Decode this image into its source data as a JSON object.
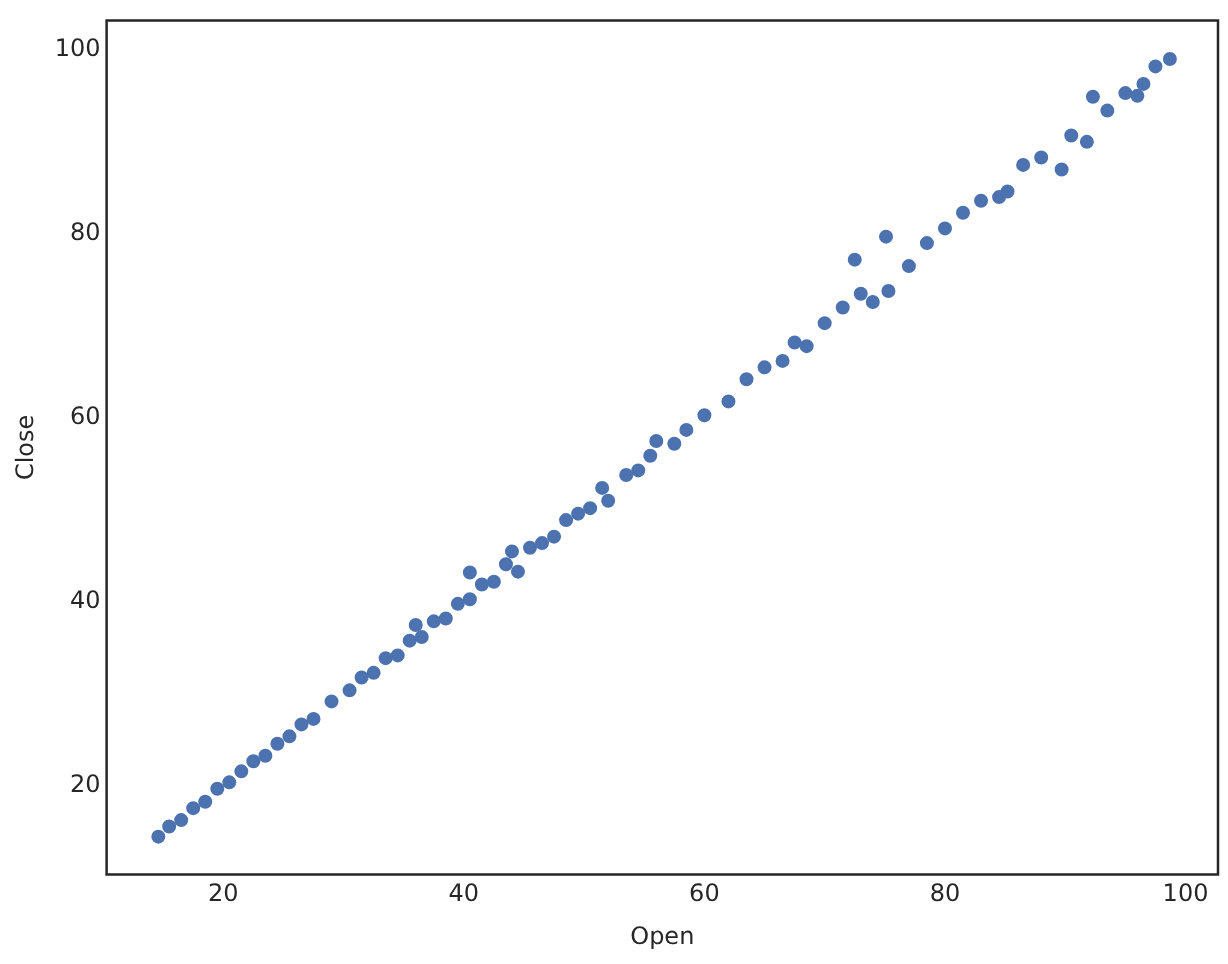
{
  "chart_data": {
    "type": "scatter",
    "xlabel": "Open",
    "ylabel": "Close",
    "xlim": [
      10.3,
      102.7
    ],
    "ylim": [
      10.4,
      103.2
    ],
    "xticks": [
      20,
      40,
      60,
      80,
      100
    ],
    "yticks": [
      20,
      40,
      60,
      80,
      100
    ],
    "grid": false,
    "legend": false,
    "marker": "circle",
    "series": [
      {
        "color": "#4c72b0",
        "x": [
          14.6,
          15.5,
          16.5,
          17.5,
          18.5,
          19.5,
          20.5,
          21.5,
          22.5,
          23.5,
          24.5,
          25.5,
          26.5,
          27.5,
          29,
          30.5,
          31.5,
          32.5,
          33.5,
          34.5,
          35.5,
          36,
          36.5,
          37.5,
          38.5,
          39.5,
          40.5,
          40.5,
          41.5,
          42.5,
          43.5,
          44,
          44.5,
          45.5,
          46.5,
          47.5,
          48.5,
          49.5,
          50.5,
          51.5,
          52,
          53.5,
          54.5,
          55.5,
          56,
          57.5,
          58.5,
          60,
          62,
          63.5,
          65,
          66.5,
          67.5,
          68.5,
          70,
          71.5,
          72.5,
          73,
          74,
          75.1,
          75.3,
          77,
          78.5,
          80,
          81.5,
          83,
          84.5,
          85.2,
          86.5,
          88,
          89.7,
          90.5,
          91.8,
          92.3,
          93.5,
          95,
          96,
          96.5,
          97.5,
          98.7
        ],
        "values": [
          14.5,
          15.6,
          16.3,
          17.6,
          18.3,
          19.7,
          20.4,
          21.6,
          22.7,
          23.3,
          24.6,
          25.4,
          26.7,
          27.3,
          29.2,
          30.4,
          31.8,
          32.3,
          33.9,
          34.2,
          35.8,
          37.5,
          36.2,
          37.9,
          38.2,
          39.8,
          43.2,
          40.3,
          41.9,
          42.2,
          44.1,
          45.5,
          43.3,
          45.9,
          46.4,
          47.1,
          48.9,
          49.6,
          50.2,
          52.4,
          51,
          53.8,
          54.3,
          55.9,
          57.5,
          57.2,
          58.7,
          60.3,
          61.8,
          64.2,
          65.5,
          66.2,
          68.2,
          67.8,
          70.3,
          72,
          77.2,
          73.5,
          72.6,
          79.7,
          73.8,
          76.5,
          79,
          80.6,
          82.3,
          83.6,
          84,
          84.6,
          87.5,
          88.3,
          87,
          90.7,
          90,
          94.9,
          93.4,
          95.3,
          95,
          96.3,
          98.2,
          99
        ]
      }
    ]
  }
}
